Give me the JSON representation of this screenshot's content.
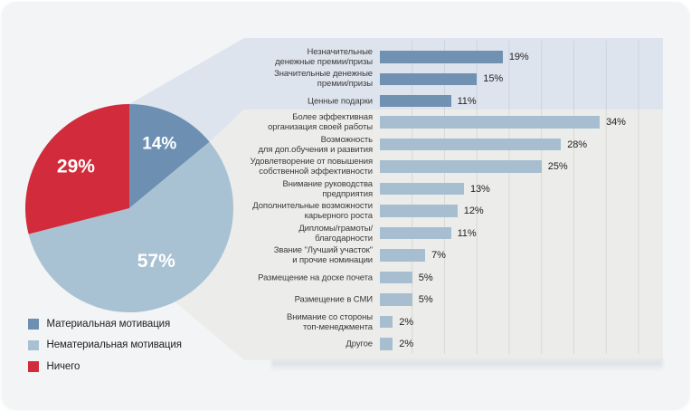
{
  "legend": {
    "items": [
      {
        "label": "Материальная мотивация",
        "color": "#6d90b2"
      },
      {
        "label": "Нематериальная мотивация",
        "color": "#a7c1d3"
      },
      {
        "label": "Ничего",
        "color": "#d22b3b"
      }
    ]
  },
  "chart_data": [
    {
      "type": "pie",
      "title": "",
      "series": [
        {
          "name": "Материальная мотивация",
          "value": 14,
          "color": "#6d90b2",
          "label": "14%"
        },
        {
          "name": "Нематериальная мотивация",
          "value": 57,
          "color": "#a9c2d3",
          "label": "57%"
        },
        {
          "name": "Ничего",
          "value": 29,
          "color": "#d22b3b",
          "label": "29%"
        }
      ],
      "start_angle_deg": 0,
      "direction": "clockwise",
      "label_color": "#ffffff"
    },
    {
      "type": "bar",
      "orientation": "horizontal",
      "value_unit": "%",
      "xlim": [
        0,
        45
      ],
      "gridline_step": 5,
      "legend_position": "bottom-left",
      "groups": [
        {
          "name": "Материальная мотивация",
          "bar_color": "#7191b3",
          "band_color": "#dee4ee",
          "gridline_color": "#ccd3e0",
          "items": [
            {
              "label": "Незначительные\nденежные премии/призы",
              "value": 19
            },
            {
              "label": "Значительные денежные\nпремии/призы",
              "value": 15
            },
            {
              "label": "Ценные подарки",
              "value": 11
            }
          ]
        },
        {
          "name": "Нематериальная мотивация",
          "bar_color": "#a6becf",
          "band_color": "#ecedea",
          "gridline_color": "#d8dad3",
          "items": [
            {
              "label": "Более эффективная\nорганизация своей работы",
              "value": 34
            },
            {
              "label": "Возможность\nдля доп.обучения и развития",
              "value": 28
            },
            {
              "label": "Удовлетворение от повышения\nсобственной эффективности",
              "value": 25
            },
            {
              "label": "Внимание руководства\nпредприятия",
              "value": 13
            },
            {
              "label": "Дополнительные возможности\nкарьерного роста",
              "value": 12
            },
            {
              "label": "Дипломы/грамоты/\nблагодарности",
              "value": 11
            },
            {
              "label": "Звание \"Лучший участок\"\nи прочие номинации",
              "value": 7
            },
            {
              "label": "Размещение на доске почета",
              "value": 5
            },
            {
              "label": "Размещение в СМИ",
              "value": 5
            },
            {
              "label": "Внимание со стороны\nтоп-менеджмента",
              "value": 2
            },
            {
              "label": "Другое",
              "value": 2
            }
          ]
        }
      ]
    }
  ],
  "colors": {
    "page_bg": "#ffffff",
    "card_bg": "#f2f4f6"
  }
}
